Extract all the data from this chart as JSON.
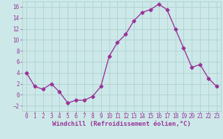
{
  "x": [
    0,
    1,
    2,
    3,
    4,
    5,
    6,
    7,
    8,
    9,
    10,
    11,
    12,
    13,
    14,
    15,
    16,
    17,
    18,
    19,
    20,
    21,
    22,
    23
  ],
  "y": [
    4,
    1.5,
    1,
    2,
    0.5,
    -1.5,
    -1,
    -1,
    -0.3,
    1.5,
    7,
    9.5,
    11,
    13.5,
    15,
    15.5,
    16.5,
    15.5,
    12,
    8.5,
    5,
    5.5,
    3,
    1.5
  ],
  "line_color": "#993399",
  "marker": "D",
  "markersize": 2.5,
  "linewidth": 1.0,
  "xlabel": "Windchill (Refroidissement éolien,°C)",
  "xlim": [
    -0.5,
    23.5
  ],
  "ylim": [
    -3,
    17
  ],
  "yticks": [
    -2,
    0,
    2,
    4,
    6,
    8,
    10,
    12,
    14,
    16
  ],
  "xticks": [
    0,
    1,
    2,
    3,
    4,
    5,
    6,
    7,
    8,
    9,
    10,
    11,
    12,
    13,
    14,
    15,
    16,
    17,
    18,
    19,
    20,
    21,
    22,
    23
  ],
  "bg_color": "#cce8e8",
  "grid_color": "#aacccc",
  "tick_color": "#993399",
  "label_color": "#993399",
  "font_size_xlabel": 6.5,
  "font_size_ticks": 5.5
}
